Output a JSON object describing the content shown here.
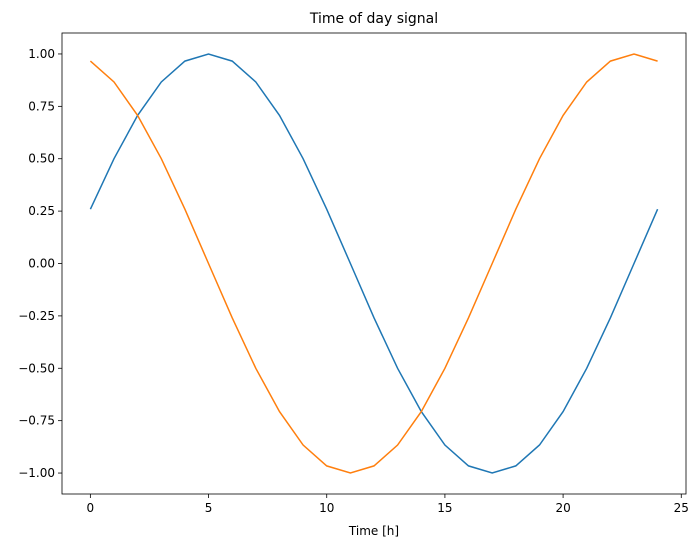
{
  "chart_data": {
    "type": "line",
    "title": "Time of day signal",
    "xlabel": "Time [h]",
    "ylabel": "",
    "xlim": [
      -1.2,
      25.2
    ],
    "ylim": [
      -1.1,
      1.1
    ],
    "grid": false,
    "xticks": [
      0,
      5,
      10,
      15,
      20,
      25
    ],
    "xtick_labels": [
      "0",
      "5",
      "10",
      "15",
      "20",
      "25"
    ],
    "yticks": [
      1.0,
      0.75,
      0.5,
      0.25,
      0.0,
      -0.25,
      -0.5,
      -0.75,
      -1.0
    ],
    "ytick_labels": [
      "1.00",
      "0.75",
      "0.50",
      "0.25",
      "0.00",
      "−0.25",
      "−0.50",
      "−0.75",
      "−1.00"
    ],
    "x": [
      0,
      1,
      2,
      3,
      4,
      5,
      6,
      7,
      8,
      9,
      10,
      11,
      12,
      13,
      14,
      15,
      16,
      17,
      18,
      19,
      20,
      21,
      22,
      23,
      24
    ],
    "series": [
      {
        "color": "#1f77b4",
        "values": [
          0.259,
          0.5,
          0.707,
          0.866,
          0.966,
          1.0,
          0.966,
          0.866,
          0.707,
          0.5,
          0.259,
          0.0,
          -0.259,
          -0.5,
          -0.707,
          -0.866,
          -0.966,
          -1.0,
          -0.966,
          -0.866,
          -0.707,
          -0.5,
          -0.259,
          0.0,
          0.259
        ]
      },
      {
        "color": "#ff7f0e",
        "values": [
          0.966,
          0.866,
          0.707,
          0.5,
          0.259,
          0.0,
          -0.259,
          -0.5,
          -0.707,
          -0.866,
          -0.966,
          -1.0,
          -0.966,
          -0.866,
          -0.707,
          -0.5,
          -0.259,
          0.0,
          0.259,
          0.5,
          0.707,
          0.866,
          0.966,
          1.0,
          0.966
        ]
      }
    ]
  }
}
